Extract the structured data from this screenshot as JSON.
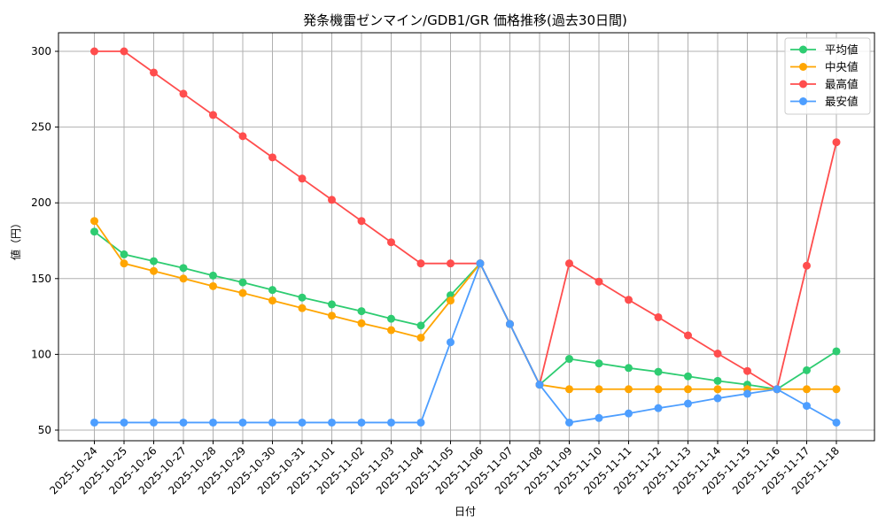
{
  "chart_data": {
    "type": "line",
    "title": "発条機雷ゼンマイン/GDB1/GR 価格推移(過去30日間)",
    "xlabel": "日付",
    "ylabel": "値（円）",
    "ylim": [
      43,
      312
    ],
    "yticks": [
      50,
      100,
      150,
      200,
      250,
      300
    ],
    "grid": true,
    "legend_position": "upper right",
    "categories": [
      "2025-10-24",
      "2025-10-25",
      "2025-10-26",
      "2025-10-27",
      "2025-10-28",
      "2025-10-29",
      "2025-10-30",
      "2025-10-31",
      "2025-11-01",
      "2025-11-02",
      "2025-11-03",
      "2025-11-04",
      "2025-11-05",
      "2025-11-06",
      "2025-11-07",
      "2025-11-08",
      "2025-11-09",
      "2025-11-10",
      "2025-11-11",
      "2025-11-12",
      "2025-11-13",
      "2025-11-14",
      "2025-11-15",
      "2025-11-16",
      "2025-11-17",
      "2025-11-18"
    ],
    "series": [
      {
        "name": "平均値",
        "color": "#2ecc71",
        "values": [
          181,
          166,
          161.5,
          157,
          152,
          147.5,
          142.5,
          137.5,
          133,
          128.5,
          123.5,
          119,
          139,
          160,
          120,
          80,
          97,
          94,
          91,
          88.5,
          85.5,
          82.5,
          80,
          77,
          89.5,
          102
        ]
      },
      {
        "name": "中央値",
        "color": "#ffa500",
        "values": [
          188,
          160,
          155,
          150,
          145,
          140.5,
          135.5,
          130.5,
          125.5,
          120.5,
          116,
          111,
          135.5,
          160,
          120,
          80,
          77,
          77,
          77,
          77,
          77,
          77,
          77,
          77,
          77,
          77
        ]
      },
      {
        "name": "最高値",
        "color": "#ff4d4d",
        "values": [
          300,
          300,
          286,
          272,
          258,
          244,
          230,
          216,
          202,
          188,
          174,
          160,
          160,
          160,
          120,
          80,
          160,
          148,
          136,
          124.5,
          112.5,
          100.5,
          89,
          77,
          158.5,
          240
        ]
      },
      {
        "name": "最安値",
        "color": "#4d9eff",
        "values": [
          55,
          55,
          55,
          55,
          55,
          55,
          55,
          55,
          55,
          55,
          55,
          55,
          108,
          160,
          120,
          80,
          55,
          58,
          61,
          64.5,
          67.5,
          71,
          74,
          77,
          66,
          55
        ]
      }
    ]
  }
}
